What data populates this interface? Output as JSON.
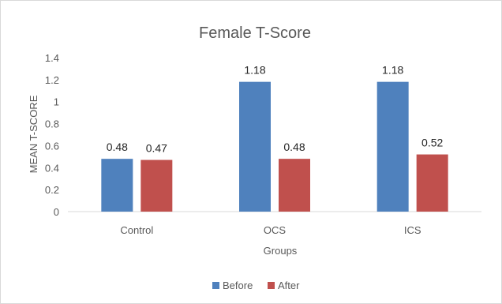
{
  "chart_data": {
    "type": "bar",
    "title": "Female T-Score",
    "xlabel": "Groups",
    "ylabel": "MEAN T-SCORE",
    "categories": [
      "Control",
      "OCS",
      "ICS"
    ],
    "series": [
      {
        "name": "Before",
        "values": [
          0.48,
          1.18,
          1.18
        ],
        "labels": [
          "0.48",
          "1.18",
          "1.18"
        ],
        "color": "#4F81BD"
      },
      {
        "name": "After",
        "values": [
          0.47,
          0.48,
          0.52
        ],
        "labels": [
          "0.47",
          "0.48",
          "0.52"
        ],
        "color": "#C0504D"
      }
    ],
    "yticks": [
      "0",
      "0.2",
      "0.4",
      "0.6",
      "0.8",
      "1",
      "1.2",
      "1.4"
    ],
    "ylim": [
      0,
      1.4
    ],
    "grid": false,
    "legend": "bottom"
  }
}
